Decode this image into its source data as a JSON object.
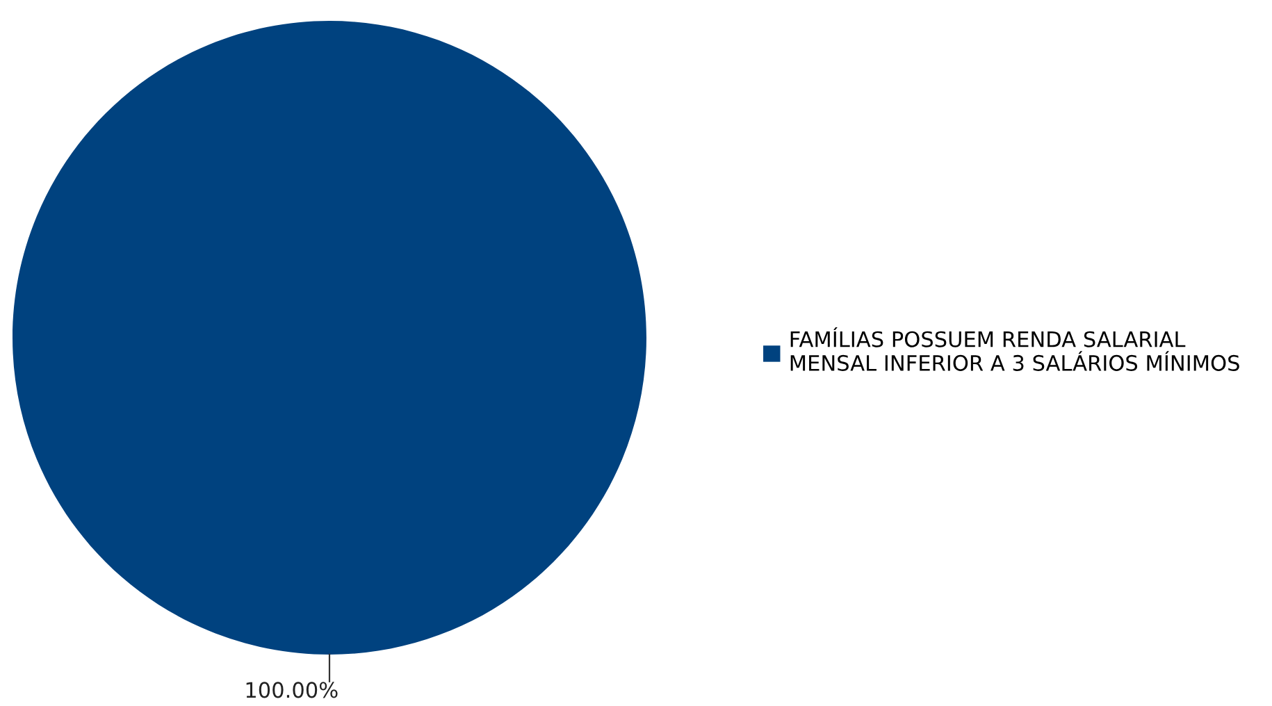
{
  "chart_data": {
    "type": "pie",
    "categories": [
      "FAMÍLIAS POSSUEM RENDA SALARIAL MENSAL INFERIOR A 3 SALÁRIOS MÍNIMOS"
    ],
    "values": [
      100
    ],
    "colors": [
      "#00427f"
    ],
    "value_labels": [
      "100.00%"
    ],
    "legend": "right"
  }
}
